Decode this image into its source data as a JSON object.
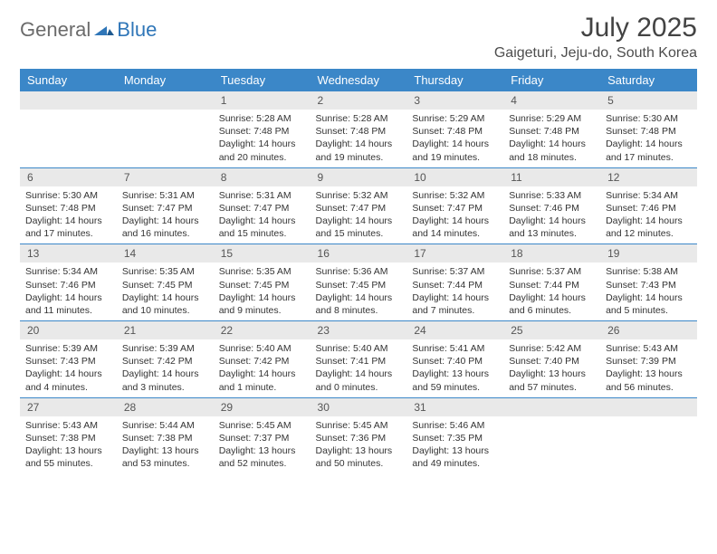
{
  "logo": {
    "part1": "General",
    "part2": "Blue",
    "icon_color": "#2f76b8"
  },
  "header": {
    "month_title": "July 2025",
    "location": "Gaigeturi, Jeju-do, South Korea"
  },
  "colors": {
    "header_bg": "#3b87c8",
    "header_text": "#ffffff",
    "daynum_bg": "#e9e9e9",
    "border": "#3b87c8",
    "logo_gray": "#6b6b6b",
    "logo_blue": "#2f76b8"
  },
  "day_headers": [
    "Sunday",
    "Monday",
    "Tuesday",
    "Wednesday",
    "Thursday",
    "Friday",
    "Saturday"
  ],
  "weeks": [
    [
      {
        "blank": true
      },
      {
        "blank": true
      },
      {
        "num": "1",
        "sunrise": "Sunrise: 5:28 AM",
        "sunset": "Sunset: 7:48 PM",
        "daylight": "Daylight: 14 hours and 20 minutes."
      },
      {
        "num": "2",
        "sunrise": "Sunrise: 5:28 AM",
        "sunset": "Sunset: 7:48 PM",
        "daylight": "Daylight: 14 hours and 19 minutes."
      },
      {
        "num": "3",
        "sunrise": "Sunrise: 5:29 AM",
        "sunset": "Sunset: 7:48 PM",
        "daylight": "Daylight: 14 hours and 19 minutes."
      },
      {
        "num": "4",
        "sunrise": "Sunrise: 5:29 AM",
        "sunset": "Sunset: 7:48 PM",
        "daylight": "Daylight: 14 hours and 18 minutes."
      },
      {
        "num": "5",
        "sunrise": "Sunrise: 5:30 AM",
        "sunset": "Sunset: 7:48 PM",
        "daylight": "Daylight: 14 hours and 17 minutes."
      }
    ],
    [
      {
        "num": "6",
        "sunrise": "Sunrise: 5:30 AM",
        "sunset": "Sunset: 7:48 PM",
        "daylight": "Daylight: 14 hours and 17 minutes."
      },
      {
        "num": "7",
        "sunrise": "Sunrise: 5:31 AM",
        "sunset": "Sunset: 7:47 PM",
        "daylight": "Daylight: 14 hours and 16 minutes."
      },
      {
        "num": "8",
        "sunrise": "Sunrise: 5:31 AM",
        "sunset": "Sunset: 7:47 PM",
        "daylight": "Daylight: 14 hours and 15 minutes."
      },
      {
        "num": "9",
        "sunrise": "Sunrise: 5:32 AM",
        "sunset": "Sunset: 7:47 PM",
        "daylight": "Daylight: 14 hours and 15 minutes."
      },
      {
        "num": "10",
        "sunrise": "Sunrise: 5:32 AM",
        "sunset": "Sunset: 7:47 PM",
        "daylight": "Daylight: 14 hours and 14 minutes."
      },
      {
        "num": "11",
        "sunrise": "Sunrise: 5:33 AM",
        "sunset": "Sunset: 7:46 PM",
        "daylight": "Daylight: 14 hours and 13 minutes."
      },
      {
        "num": "12",
        "sunrise": "Sunrise: 5:34 AM",
        "sunset": "Sunset: 7:46 PM",
        "daylight": "Daylight: 14 hours and 12 minutes."
      }
    ],
    [
      {
        "num": "13",
        "sunrise": "Sunrise: 5:34 AM",
        "sunset": "Sunset: 7:46 PM",
        "daylight": "Daylight: 14 hours and 11 minutes."
      },
      {
        "num": "14",
        "sunrise": "Sunrise: 5:35 AM",
        "sunset": "Sunset: 7:45 PM",
        "daylight": "Daylight: 14 hours and 10 minutes."
      },
      {
        "num": "15",
        "sunrise": "Sunrise: 5:35 AM",
        "sunset": "Sunset: 7:45 PM",
        "daylight": "Daylight: 14 hours and 9 minutes."
      },
      {
        "num": "16",
        "sunrise": "Sunrise: 5:36 AM",
        "sunset": "Sunset: 7:45 PM",
        "daylight": "Daylight: 14 hours and 8 minutes."
      },
      {
        "num": "17",
        "sunrise": "Sunrise: 5:37 AM",
        "sunset": "Sunset: 7:44 PM",
        "daylight": "Daylight: 14 hours and 7 minutes."
      },
      {
        "num": "18",
        "sunrise": "Sunrise: 5:37 AM",
        "sunset": "Sunset: 7:44 PM",
        "daylight": "Daylight: 14 hours and 6 minutes."
      },
      {
        "num": "19",
        "sunrise": "Sunrise: 5:38 AM",
        "sunset": "Sunset: 7:43 PM",
        "daylight": "Daylight: 14 hours and 5 minutes."
      }
    ],
    [
      {
        "num": "20",
        "sunrise": "Sunrise: 5:39 AM",
        "sunset": "Sunset: 7:43 PM",
        "daylight": "Daylight: 14 hours and 4 minutes."
      },
      {
        "num": "21",
        "sunrise": "Sunrise: 5:39 AM",
        "sunset": "Sunset: 7:42 PM",
        "daylight": "Daylight: 14 hours and 3 minutes."
      },
      {
        "num": "22",
        "sunrise": "Sunrise: 5:40 AM",
        "sunset": "Sunset: 7:42 PM",
        "daylight": "Daylight: 14 hours and 1 minute."
      },
      {
        "num": "23",
        "sunrise": "Sunrise: 5:40 AM",
        "sunset": "Sunset: 7:41 PM",
        "daylight": "Daylight: 14 hours and 0 minutes."
      },
      {
        "num": "24",
        "sunrise": "Sunrise: 5:41 AM",
        "sunset": "Sunset: 7:40 PM",
        "daylight": "Daylight: 13 hours and 59 minutes."
      },
      {
        "num": "25",
        "sunrise": "Sunrise: 5:42 AM",
        "sunset": "Sunset: 7:40 PM",
        "daylight": "Daylight: 13 hours and 57 minutes."
      },
      {
        "num": "26",
        "sunrise": "Sunrise: 5:43 AM",
        "sunset": "Sunset: 7:39 PM",
        "daylight": "Daylight: 13 hours and 56 minutes."
      }
    ],
    [
      {
        "num": "27",
        "sunrise": "Sunrise: 5:43 AM",
        "sunset": "Sunset: 7:38 PM",
        "daylight": "Daylight: 13 hours and 55 minutes."
      },
      {
        "num": "28",
        "sunrise": "Sunrise: 5:44 AM",
        "sunset": "Sunset: 7:38 PM",
        "daylight": "Daylight: 13 hours and 53 minutes."
      },
      {
        "num": "29",
        "sunrise": "Sunrise: 5:45 AM",
        "sunset": "Sunset: 7:37 PM",
        "daylight": "Daylight: 13 hours and 52 minutes."
      },
      {
        "num": "30",
        "sunrise": "Sunrise: 5:45 AM",
        "sunset": "Sunset: 7:36 PM",
        "daylight": "Daylight: 13 hours and 50 minutes."
      },
      {
        "num": "31",
        "sunrise": "Sunrise: 5:46 AM",
        "sunset": "Sunset: 7:35 PM",
        "daylight": "Daylight: 13 hours and 49 minutes."
      },
      {
        "blank": true
      },
      {
        "blank": true
      }
    ]
  ]
}
